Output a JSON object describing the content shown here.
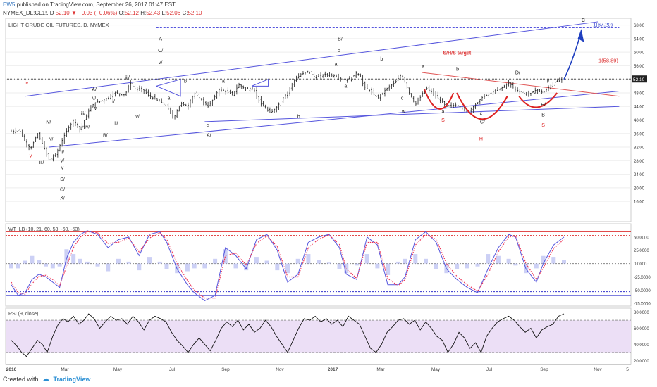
{
  "header": {
    "brand": "EW5",
    "published": "published on TradingView.com, September 26, 2017 01:47 EST",
    "symbol": "NYMEX_DL:CL1!, D",
    "last": "52.10",
    "change": "−0.03 (−0.06%)",
    "ohlc_o_label": "O:",
    "ohlc_o": "52.12",
    "ohlc_h_label": "H:",
    "ohlc_h": "52.43",
    "ohlc_l_label": "L:",
    "ohlc_l": "52.06",
    "ohlc_c_label": "C:",
    "ohlc_c": "52.10"
  },
  "footer": {
    "created_with": "Created with",
    "brand": "TradingView"
  },
  "colors": {
    "candle": "#222222",
    "channel": "#5555dd",
    "red_line": "#e05555",
    "wt_fast": "#5555dd",
    "wt_slow": "#ee3355",
    "rsi_band": "#ecdff6",
    "projection": "#1f3fbf"
  },
  "chart_data": [
    {
      "type": "candlestick",
      "title": "LIGHT CRUDE OIL FUTURES, D, NYMEX",
      "ylim": [
        10,
        70
      ],
      "y_ticks": [
        "68.00",
        "64.00",
        "60.00",
        "56.00",
        "52.00",
        "48.00",
        "44.00",
        "40.00",
        "36.00",
        "32.00",
        "28.00",
        "24.00",
        "20.00",
        "16.00"
      ],
      "last_price": "52.10",
      "price_labels": [
        "1(67.20)",
        "1(58.89)"
      ],
      "target_label": "S/H/S target",
      "x_labels": [
        "2016",
        "Mar",
        "May",
        "Jul",
        "Sep",
        "Nov",
        "2017",
        "Mar",
        "May",
        "Jul",
        "Sep",
        "Nov",
        "5"
      ],
      "series": [
        {
          "x": [
            0,
            12,
            20,
            28,
            38,
            45,
            55,
            65,
            78,
            90,
            100,
            110,
            120,
            135,
            150,
            165,
            172,
            180,
            190,
            200,
            210,
            215,
            225,
            235,
            245,
            255,
            265,
            275,
            285,
            295,
            300,
            310,
            320,
            330,
            340,
            350,
            360,
            365,
            375,
            385,
            395,
            400,
            410,
            420,
            430,
            440,
            455,
            470,
            480,
            490,
            500,
            505,
            510,
            520,
            530,
            540,
            545,
            555,
            565,
            575,
            585,
            590,
            600,
            610,
            620,
            630,
            645,
            660,
            675,
            680,
            690,
            700,
            710,
            720,
            730,
            740,
            750,
            760,
            770,
            780,
            790,
            800
          ],
          "close": [
            36.5,
            37,
            33.5,
            31.5,
            36,
            33,
            28,
            30,
            36,
            40,
            37,
            42,
            45,
            46,
            48,
            47.5,
            51,
            49,
            49,
            47,
            46,
            45.5,
            44,
            40.5,
            45,
            44,
            48,
            46,
            44,
            47,
            49,
            48.5,
            47.5,
            50.5,
            49,
            49.5,
            45,
            44,
            42,
            44,
            47,
            48,
            52,
            53.5,
            54.5,
            52.5,
            53.5,
            53,
            52,
            52,
            54,
            53,
            50,
            48.5,
            46.5,
            48.5,
            49.5,
            51,
            53.5,
            48.5,
            44.5,
            46,
            49.5,
            48,
            46,
            44,
            44.5,
            42.5,
            45,
            46.5,
            47.5,
            48.5,
            49.5,
            51,
            49,
            48,
            47.5,
            49,
            48,
            50,
            51.5,
            52.1
          ]
        }
      ],
      "labels": [
        {
          "x": 22,
          "y": 50.5,
          "text": "iv",
          "color": "red"
        },
        {
          "x": 28,
          "y": 29,
          "text": "v",
          "color": "red"
        },
        {
          "x": 54,
          "y": 39,
          "text": "iv/"
        },
        {
          "x": 58,
          "y": 34,
          "text": "v/"
        },
        {
          "x": 44,
          "y": 27,
          "text": "iii/"
        },
        {
          "x": 74,
          "y": 30,
          "text": "ii/"
        },
        {
          "x": 74,
          "y": 27.5,
          "text": "v/"
        },
        {
          "x": 74,
          "y": 25.5,
          "text": "v"
        },
        {
          "x": 74,
          "y": 22,
          "text": "S/"
        },
        {
          "x": 74,
          "y": 19,
          "text": "C/"
        },
        {
          "x": 74,
          "y": 16.5,
          "text": "X/"
        },
        {
          "x": 102,
          "y": 37,
          "text": "i/"
        },
        {
          "x": 104,
          "y": 41.5,
          "text": "iii/"
        },
        {
          "x": 110,
          "y": 37.5,
          "text": "iv/"
        },
        {
          "x": 120,
          "y": 48.5,
          "text": "A/"
        },
        {
          "x": 120,
          "y": 46,
          "text": "v/"
        },
        {
          "x": 122,
          "y": 43,
          "text": "v"
        },
        {
          "x": 136,
          "y": 35,
          "text": "B/"
        },
        {
          "x": 148,
          "y": 45,
          "text": "i/"
        },
        {
          "x": 152,
          "y": 38.5,
          "text": "ii/"
        },
        {
          "x": 168,
          "y": 52,
          "text": "iii/"
        },
        {
          "x": 182,
          "y": 40.5,
          "text": "iv/"
        },
        {
          "x": 216,
          "y": 63.5,
          "text": "A"
        },
        {
          "x": 216,
          "y": 60,
          "text": "C/"
        },
        {
          "x": 216,
          "y": 56.5,
          "text": "v/"
        },
        {
          "x": 228,
          "y": 46,
          "text": "a"
        },
        {
          "x": 252,
          "y": 51,
          "text": "b"
        },
        {
          "x": 284,
          "y": 38,
          "text": "c"
        },
        {
          "x": 286,
          "y": 35,
          "text": "A/"
        },
        {
          "x": 307,
          "y": 51,
          "text": "a"
        },
        {
          "x": 334,
          "y": 49,
          "text": "c"
        },
        {
          "x": 416,
          "y": 40.5,
          "text": "b"
        },
        {
          "x": 476,
          "y": 63.5,
          "text": "B/"
        },
        {
          "x": 474,
          "y": 60,
          "text": "c"
        },
        {
          "x": 470,
          "y": 56,
          "text": "a"
        },
        {
          "x": 484,
          "y": 49.5,
          "text": "a"
        },
        {
          "x": 536,
          "y": 57.5,
          "text": "b"
        },
        {
          "x": 566,
          "y": 46,
          "text": "c"
        },
        {
          "x": 568,
          "y": 42,
          "text": "w"
        },
        {
          "x": 596,
          "y": 55.5,
          "text": "x"
        },
        {
          "x": 625,
          "y": 42,
          "text": "a"
        },
        {
          "x": 646,
          "y": 54.5,
          "text": "b"
        },
        {
          "x": 680,
          "y": 41.5,
          "text": "c"
        },
        {
          "x": 682,
          "y": 39,
          "text": "C/"
        },
        {
          "x": 733,
          "y": 53.5,
          "text": "D/"
        },
        {
          "x": 777,
          "y": 51,
          "text": "i/"
        },
        {
          "x": 770,
          "y": 44,
          "text": "E/"
        },
        {
          "x": 770,
          "y": 41,
          "text": "B"
        },
        {
          "x": 828,
          "y": 69,
          "text": "C"
        },
        {
          "x": 625,
          "y": 39.5,
          "text": "S",
          "color": "red"
        },
        {
          "x": 680,
          "y": 34,
          "text": "H",
          "color": "red"
        },
        {
          "x": 770,
          "y": 38,
          "text": "S",
          "color": "red"
        }
      ]
    },
    {
      "type": "line",
      "title": "WT_LB (10, 21, 60, 53, -60, -53)",
      "ylim": [
        -80,
        75
      ],
      "y_ticks": [
        "50.0000",
        "25.0000",
        "0.0000",
        "-25.0000",
        "-50.0000",
        "-75.0000"
      ],
      "levels": [
        60,
        53,
        -53,
        -60
      ],
      "series": [
        {
          "name": "",
          "x": [
            0,
            10,
            20,
            30,
            40,
            50,
            60,
            70,
            80,
            90,
            100,
            110,
            125,
            140,
            155,
            170,
            185,
            200,
            215,
            225,
            240,
            255,
            265,
            280,
            295,
            310,
            325,
            340,
            355,
            370,
            385,
            400,
            415,
            430,
            445,
            460,
            475,
            485,
            500,
            515,
            530,
            545,
            560,
            570,
            585,
            600,
            615,
            630,
            645,
            660,
            675,
            690,
            705,
            720,
            730,
            745,
            760,
            770,
            785,
            800
          ],
          "values": [
            -40,
            -60,
            -55,
            -30,
            -20,
            -25,
            -35,
            -45,
            10,
            40,
            55,
            62,
            55,
            30,
            45,
            50,
            15,
            55,
            60,
            40,
            -10,
            -40,
            -55,
            -70,
            -60,
            30,
            15,
            -10,
            45,
            55,
            25,
            -35,
            -20,
            40,
            50,
            55,
            30,
            -20,
            -30,
            50,
            35,
            -40,
            -40,
            -25,
            45,
            60,
            40,
            -10,
            -30,
            -45,
            -55,
            -10,
            30,
            55,
            50,
            -10,
            -35,
            0,
            35,
            50
          ]
        },
        {
          "name": "",
          "x": [
            0,
            10,
            20,
            30,
            40,
            50,
            60,
            70,
            80,
            90,
            100,
            110,
            125,
            140,
            155,
            170,
            185,
            200,
            215,
            225,
            240,
            255,
            265,
            280,
            295,
            310,
            325,
            340,
            355,
            370,
            385,
            400,
            415,
            430,
            445,
            460,
            475,
            485,
            500,
            515,
            530,
            545,
            560,
            570,
            585,
            600,
            615,
            630,
            645,
            660,
            675,
            690,
            705,
            720,
            730,
            745,
            760,
            770,
            785,
            800
          ],
          "values": [
            -35,
            -55,
            -58,
            -38,
            -24,
            -22,
            -30,
            -42,
            -5,
            30,
            50,
            60,
            58,
            38,
            40,
            48,
            22,
            48,
            58,
            46,
            0,
            -32,
            -50,
            -65,
            -65,
            15,
            20,
            -3,
            38,
            52,
            32,
            -25,
            -25,
            30,
            46,
            54,
            36,
            -10,
            -28,
            40,
            40,
            -28,
            -42,
            -30,
            35,
            55,
            46,
            0,
            -24,
            -40,
            -52,
            -20,
            22,
            50,
            52,
            0,
            -30,
            -8,
            28,
            46
          ]
        }
      ]
    },
    {
      "type": "line",
      "title": "RSI (9, close)",
      "ylim": [
        15,
        85
      ],
      "y_ticks": [
        "80.0000",
        "60.0000",
        "40.0000",
        "20.0000"
      ],
      "band": [
        30,
        70
      ],
      "series": [
        {
          "name": "",
          "x": [
            0,
            8,
            15,
            22,
            30,
            38,
            45,
            52,
            60,
            68,
            75,
            82,
            90,
            98,
            105,
            112,
            120,
            128,
            136,
            144,
            152,
            160,
            168,
            176,
            184,
            192,
            200,
            208,
            216,
            224,
            232,
            240,
            248,
            256,
            264,
            272,
            280,
            288,
            296,
            304,
            312,
            320,
            328,
            336,
            344,
            352,
            360,
            368,
            376,
            384,
            392,
            400,
            408,
            416,
            424,
            432,
            440,
            448,
            456,
            464,
            472,
            480,
            488,
            496,
            504,
            512,
            520,
            528,
            536,
            544,
            552,
            560,
            568,
            576,
            584,
            592,
            600,
            608,
            616,
            624,
            632,
            640,
            648,
            656,
            664,
            672,
            680,
            688,
            696,
            704,
            712,
            720,
            728,
            736,
            744,
            752,
            760,
            768,
            776,
            784,
            792,
            800
          ],
          "values": [
            45,
            38,
            30,
            25,
            35,
            45,
            40,
            30,
            50,
            65,
            72,
            68,
            75,
            65,
            70,
            78,
            72,
            60,
            68,
            75,
            70,
            72,
            65,
            75,
            68,
            58,
            70,
            75,
            72,
            68,
            55,
            45,
            38,
            30,
            40,
            48,
            40,
            32,
            45,
            60,
            68,
            62,
            70,
            58,
            65,
            55,
            60,
            70,
            62,
            50,
            40,
            30,
            45,
            60,
            72,
            70,
            75,
            68,
            72,
            65,
            70,
            62,
            75,
            70,
            65,
            50,
            35,
            30,
            40,
            55,
            62,
            70,
            72,
            65,
            70,
            58,
            68,
            60,
            50,
            45,
            30,
            40,
            55,
            48,
            35,
            42,
            30,
            50,
            60,
            68,
            72,
            75,
            70,
            62,
            55,
            60,
            48,
            58,
            62,
            65,
            75,
            78
          ]
        }
      ]
    }
  ]
}
